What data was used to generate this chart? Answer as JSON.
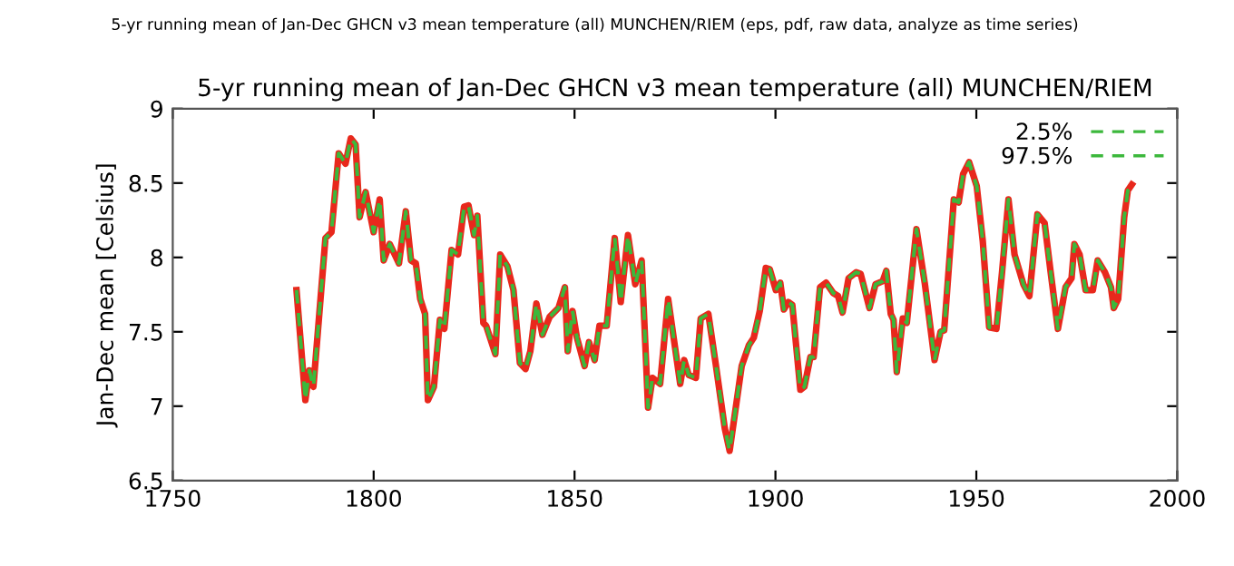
{
  "chart_data": {
    "type": "line",
    "title": "5-yr running mean of Jan-Dec GHCN v3 mean temperature (all) MUNCHEN/RIEM",
    "ylabel": "Jan-Dec mean [Celsius]",
    "annotations": [
      "5-yr running mean of Jan-Dec GHCN v3 mean temperature (all) MUNCHEN/RIEM (eps, pdf, raw data, analyze as time series)"
    ],
    "x": [
      1780.8,
      1783,
      1784,
      1785,
      1788,
      1789.5,
      1791.3,
      1793,
      1794.3,
      1795.5,
      1796.5,
      1798,
      1800,
      1801.5,
      1802.5,
      1804,
      1806.3,
      1808,
      1809.3,
      1810.5,
      1811.6,
      1812.8,
      1813.5,
      1815,
      1816.5,
      1817.6,
      1819.4,
      1821,
      1822.5,
      1823.6,
      1825,
      1825.8,
      1827.3,
      1828,
      1830.3,
      1831.5,
      1833.3,
      1834.8,
      1836.4,
      1837.8,
      1839,
      1840.5,
      1842,
      1843.8,
      1846,
      1847.6,
      1848.3,
      1849.5,
      1850.6,
      1852.5,
      1853.6,
      1855,
      1856.2,
      1858,
      1860,
      1861.5,
      1863.3,
      1865.1,
      1866.7,
      1868.3,
      1869.4,
      1871.3,
      1873.3,
      1876.3,
      1877.3,
      1878.4,
      1880.2,
      1881.4,
      1883.3,
      1885.1,
      1887.4,
      1888.6,
      1891.6,
      1893.4,
      1894.6,
      1896.1,
      1897.6,
      1898.6,
      1900.1,
      1901.2,
      1902.1,
      1903.2,
      1904.2,
      1906.2,
      1907.2,
      1908.7,
      1909.5,
      1911.1,
      1912.6,
      1914.4,
      1915.6,
      1916.7,
      1918.2,
      1920.1,
      1921.2,
      1923.4,
      1924.9,
      1926.7,
      1927.6,
      1928.7,
      1929.4,
      1930.2,
      1931.7,
      1932.7,
      1935.1,
      1937.2,
      1939.6,
      1941.1,
      1942,
      1944.4,
      1945.6,
      1946.7,
      1948.2,
      1950.1,
      1951.6,
      1953.2,
      1955,
      1956.4,
      1958,
      1959.5,
      1961.7,
      1963.2,
      1965.2,
      1967,
      1968.5,
      1970.3,
      1972.2,
      1973.7,
      1974.4,
      1975.7,
      1977.2,
      1979,
      1980.2,
      1982,
      1983.5,
      1984.2,
      1985.3,
      1986.8,
      1987.7,
      1988.7
    ],
    "series": [
      {
        "color": "#e8281c",
        "line_style": "solid",
        "values": [
          7.78,
          7.04,
          7.24,
          7.13,
          8.13,
          8.17,
          8.7,
          8.63,
          8.8,
          8.76,
          8.27,
          8.44,
          8.17,
          8.39,
          7.98,
          8.09,
          7.96,
          8.31,
          7.98,
          7.96,
          7.72,
          7.62,
          7.04,
          7.13,
          7.58,
          7.52,
          8.05,
          8.02,
          8.34,
          8.35,
          8.15,
          8.28,
          7.56,
          7.54,
          7.35,
          8.02,
          7.94,
          7.78,
          7.29,
          7.25,
          7.37,
          7.69,
          7.48,
          7.6,
          7.66,
          7.8,
          7.37,
          7.64,
          7.46,
          7.27,
          7.43,
          7.31,
          7.54,
          7.54,
          8.13,
          7.7,
          8.15,
          7.82,
          7.98,
          6.99,
          7.19,
          7.15,
          7.72,
          7.15,
          7.31,
          7.21,
          7.19,
          7.59,
          7.62,
          7.29,
          6.85,
          6.7,
          7.27,
          7.41,
          7.46,
          7.64,
          7.93,
          7.92,
          7.78,
          7.83,
          7.65,
          7.7,
          7.68,
          7.11,
          7.13,
          7.33,
          7.33,
          7.8,
          7.83,
          7.76,
          7.74,
          7.63,
          7.86,
          7.9,
          7.89,
          7.66,
          7.82,
          7.84,
          7.91,
          7.62,
          7.58,
          7.23,
          7.59,
          7.56,
          8.19,
          7.82,
          7.31,
          7.5,
          7.51,
          8.39,
          8.37,
          8.56,
          8.64,
          8.48,
          8.11,
          7.53,
          7.52,
          7.9,
          8.39,
          8.02,
          7.82,
          7.74,
          8.29,
          8.23,
          7.9,
          7.52,
          7.8,
          7.86,
          8.09,
          8.02,
          7.78,
          7.78,
          7.98,
          7.9,
          7.8,
          7.66,
          7.72,
          8.27,
          8.45,
          8.49
        ]
      },
      {
        "name": "2.5%",
        "color": "#3cb83c",
        "line_style": "dashed",
        "values": [
          7.78,
          7.04,
          7.24,
          7.13,
          8.13,
          8.17,
          8.7,
          8.63,
          8.8,
          8.76,
          8.27,
          8.44,
          8.17,
          8.39,
          7.98,
          8.09,
          7.96,
          8.31,
          7.98,
          7.96,
          7.72,
          7.62,
          7.04,
          7.13,
          7.58,
          7.52,
          8.05,
          8.02,
          8.34,
          8.35,
          8.15,
          8.28,
          7.56,
          7.54,
          7.35,
          8.02,
          7.94,
          7.78,
          7.29,
          7.25,
          7.37,
          7.69,
          7.48,
          7.6,
          7.66,
          7.8,
          7.37,
          7.64,
          7.46,
          7.27,
          7.43,
          7.31,
          7.54,
          7.54,
          8.13,
          7.7,
          8.15,
          7.82,
          7.98,
          6.99,
          7.19,
          7.15,
          7.72,
          7.15,
          7.31,
          7.21,
          7.19,
          7.59,
          7.62,
          7.29,
          6.85,
          6.7,
          7.27,
          7.41,
          7.46,
          7.64,
          7.93,
          7.92,
          7.78,
          7.83,
          7.65,
          7.7,
          7.68,
          7.11,
          7.13,
          7.33,
          7.33,
          7.8,
          7.83,
          7.76,
          7.74,
          7.63,
          7.86,
          7.9,
          7.89,
          7.66,
          7.82,
          7.84,
          7.91,
          7.62,
          7.58,
          7.23,
          7.59,
          7.56,
          8.19,
          7.82,
          7.31,
          7.5,
          7.51,
          8.39,
          8.37,
          8.56,
          8.64,
          8.48,
          8.11,
          7.53,
          7.52,
          7.9,
          8.39,
          8.02,
          7.82,
          7.74,
          8.29,
          8.23,
          7.9,
          7.52,
          7.8,
          7.86,
          8.09,
          8.02,
          7.78,
          7.78,
          7.98,
          7.9,
          7.8,
          7.66,
          7.72,
          8.27,
          8.45,
          8.49
        ]
      },
      {
        "name": "97.5%",
        "color": "#3cb83c",
        "line_style": "dashed",
        "values": [
          7.78,
          7.04,
          7.24,
          7.13,
          8.13,
          8.17,
          8.7,
          8.63,
          8.8,
          8.76,
          8.27,
          8.44,
          8.17,
          8.39,
          7.98,
          8.09,
          7.96,
          8.31,
          7.98,
          7.96,
          7.72,
          7.62,
          7.04,
          7.13,
          7.58,
          7.52,
          8.05,
          8.02,
          8.34,
          8.35,
          8.15,
          8.28,
          7.56,
          7.54,
          7.35,
          8.02,
          7.94,
          7.78,
          7.29,
          7.25,
          7.37,
          7.69,
          7.48,
          7.6,
          7.66,
          7.8,
          7.37,
          7.64,
          7.46,
          7.27,
          7.43,
          7.31,
          7.54,
          7.54,
          8.13,
          7.7,
          8.15,
          7.82,
          7.98,
          6.99,
          7.19,
          7.15,
          7.72,
          7.15,
          7.31,
          7.21,
          7.19,
          7.59,
          7.62,
          7.29,
          6.85,
          6.7,
          7.27,
          7.41,
          7.46,
          7.64,
          7.93,
          7.92,
          7.78,
          7.83,
          7.65,
          7.7,
          7.68,
          7.11,
          7.13,
          7.33,
          7.33,
          7.8,
          7.83,
          7.76,
          7.74,
          7.63,
          7.86,
          7.9,
          7.89,
          7.66,
          7.82,
          7.84,
          7.91,
          7.62,
          7.58,
          7.23,
          7.59,
          7.56,
          8.19,
          7.82,
          7.31,
          7.5,
          7.51,
          8.39,
          8.37,
          8.56,
          8.64,
          8.48,
          8.11,
          7.53,
          7.52,
          7.9,
          8.39,
          8.02,
          7.82,
          7.74,
          8.29,
          8.23,
          7.9,
          7.52,
          7.8,
          7.86,
          8.09,
          8.02,
          7.78,
          7.78,
          7.98,
          7.9,
          7.8,
          7.66,
          7.72,
          8.27,
          8.45,
          8.49
        ]
      }
    ],
    "xlim": [
      1750,
      2000
    ],
    "xticks": [
      1750,
      1800,
      1850,
      1900,
      1950,
      2000
    ],
    "ylim": [
      6.5,
      9
    ],
    "yticks": [
      6.5,
      7,
      7.5,
      8,
      8.5,
      9
    ],
    "grid": false,
    "legend": "top right"
  }
}
